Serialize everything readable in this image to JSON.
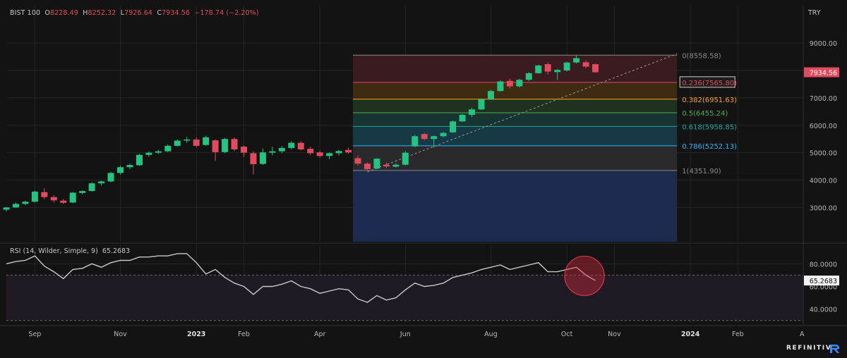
{
  "header": {
    "instrument": "BIST 100",
    "open_label": "O",
    "open": "8228.49",
    "high_label": "H",
    "high": "8252.32",
    "low_label": "L",
    "low": "7926.64",
    "close_label": "C",
    "close": "7934.56",
    "change": "−178.74 (−2.20%)"
  },
  "currency": "TRY",
  "last_price_label": "7934.56",
  "rsi": {
    "label": "RSI (14, Wilder, Simple, 9)",
    "value_label": "65.2683",
    "ticks": [
      "80.0000",
      "60.0000",
      "40.0000"
    ]
  },
  "brand": "REFINITIV",
  "colors": {
    "up": "#26c281",
    "down": "#e24a5e",
    "background": "#131313",
    "grid": "#262626",
    "rsi_line": "#c8c8c8"
  },
  "chart_data": [
    {
      "type": "candlestick",
      "title": "BIST 100",
      "ylabel": "TRY",
      "ylim": [
        1750,
        9800
      ],
      "y_ticks": [
        3000,
        4000,
        5000,
        6000,
        7000,
        8000,
        9000
      ],
      "y_tick_labels": [
        "3000.00",
        "4000.00",
        "5000.00",
        "6000.00",
        "7000.00",
        "8000.00",
        "9000.00"
      ],
      "x_ticks": [
        {
          "label": "Sep",
          "i": 3,
          "bold": false
        },
        {
          "label": "Nov",
          "i": 12,
          "bold": false
        },
        {
          "label": "2023",
          "i": 20,
          "bold": true
        },
        {
          "label": "Feb",
          "i": 25,
          "bold": false
        },
        {
          "label": "Apr",
          "i": 33,
          "bold": false
        },
        {
          "label": "Jun",
          "i": 42,
          "bold": false
        },
        {
          "label": "Aug",
          "i": 51,
          "bold": false
        },
        {
          "label": "Oct",
          "i": 59,
          "bold": false
        },
        {
          "label": "Nov",
          "i": 64,
          "bold": false
        },
        {
          "label": "2024",
          "i": 72,
          "bold": true
        },
        {
          "label": "Feb",
          "i": 77,
          "bold": false
        }
      ],
      "candles": [
        {
          "o": 2920,
          "h": 3020,
          "l": 2850,
          "c": 3000
        },
        {
          "o": 3000,
          "h": 3180,
          "l": 2980,
          "c": 3130
        },
        {
          "o": 3130,
          "h": 3250,
          "l": 3080,
          "c": 3210
        },
        {
          "o": 3210,
          "h": 3620,
          "l": 3190,
          "c": 3580
        },
        {
          "o": 3560,
          "h": 3700,
          "l": 3300,
          "c": 3380
        },
        {
          "o": 3380,
          "h": 3450,
          "l": 3180,
          "c": 3260
        },
        {
          "o": 3250,
          "h": 3310,
          "l": 3130,
          "c": 3170
        },
        {
          "o": 3180,
          "h": 3560,
          "l": 3160,
          "c": 3540
        },
        {
          "o": 3530,
          "h": 3620,
          "l": 3480,
          "c": 3600
        },
        {
          "o": 3600,
          "h": 3930,
          "l": 3580,
          "c": 3880
        },
        {
          "o": 3880,
          "h": 3980,
          "l": 3800,
          "c": 3950
        },
        {
          "o": 3950,
          "h": 4300,
          "l": 3920,
          "c": 4260
        },
        {
          "o": 4260,
          "h": 4520,
          "l": 4200,
          "c": 4470
        },
        {
          "o": 4470,
          "h": 4600,
          "l": 4400,
          "c": 4550
        },
        {
          "o": 4540,
          "h": 4960,
          "l": 4520,
          "c": 4920
        },
        {
          "o": 4920,
          "h": 5050,
          "l": 4850,
          "c": 5000
        },
        {
          "o": 5000,
          "h": 5100,
          "l": 4960,
          "c": 5050
        },
        {
          "o": 5050,
          "h": 5300,
          "l": 5020,
          "c": 5250
        },
        {
          "o": 5250,
          "h": 5480,
          "l": 5220,
          "c": 5440
        },
        {
          "o": 5440,
          "h": 5580,
          "l": 5360,
          "c": 5480
        },
        {
          "o": 5480,
          "h": 5560,
          "l": 5200,
          "c": 5250
        },
        {
          "o": 5280,
          "h": 5620,
          "l": 5250,
          "c": 5560
        },
        {
          "o": 5450,
          "h": 5480,
          "l": 4700,
          "c": 5020
        },
        {
          "o": 5020,
          "h": 5540,
          "l": 4980,
          "c": 5500
        },
        {
          "o": 5500,
          "h": 5560,
          "l": 5050,
          "c": 5120
        },
        {
          "o": 5220,
          "h": 5260,
          "l": 4850,
          "c": 5000
        },
        {
          "o": 4980,
          "h": 5050,
          "l": 4200,
          "c": 4580
        },
        {
          "o": 4590,
          "h": 5150,
          "l": 4550,
          "c": 5010
        },
        {
          "o": 5000,
          "h": 5220,
          "l": 4900,
          "c": 5050
        },
        {
          "o": 5050,
          "h": 5240,
          "l": 4980,
          "c": 5170
        },
        {
          "o": 5170,
          "h": 5420,
          "l": 5120,
          "c": 5360
        },
        {
          "o": 5360,
          "h": 5420,
          "l": 5080,
          "c": 5120
        },
        {
          "o": 5140,
          "h": 5220,
          "l": 4920,
          "c": 4980
        },
        {
          "o": 5010,
          "h": 5060,
          "l": 4820,
          "c": 4880
        },
        {
          "o": 4880,
          "h": 5010,
          "l": 4760,
          "c": 4980
        },
        {
          "o": 4980,
          "h": 5100,
          "l": 4900,
          "c": 5060
        },
        {
          "o": 5100,
          "h": 5180,
          "l": 4960,
          "c": 5010
        },
        {
          "o": 4800,
          "h": 4900,
          "l": 4520,
          "c": 4600
        },
        {
          "o": 4600,
          "h": 4640,
          "l": 4351.9,
          "c": 4400
        },
        {
          "o": 4420,
          "h": 4800,
          "l": 4400,
          "c": 4780
        },
        {
          "o": 4560,
          "h": 4640,
          "l": 4440,
          "c": 4500
        },
        {
          "o": 4490,
          "h": 4620,
          "l": 4460,
          "c": 4560
        },
        {
          "o": 4560,
          "h": 5060,
          "l": 4540,
          "c": 5000
        },
        {
          "o": 5230,
          "h": 5650,
          "l": 5200,
          "c": 5600
        },
        {
          "o": 5680,
          "h": 5720,
          "l": 5450,
          "c": 5500
        },
        {
          "o": 5500,
          "h": 5620,
          "l": 5180,
          "c": 5600
        },
        {
          "o": 5600,
          "h": 5760,
          "l": 5560,
          "c": 5720
        },
        {
          "o": 5740,
          "h": 6180,
          "l": 5720,
          "c": 6140
        },
        {
          "o": 6140,
          "h": 6420,
          "l": 6120,
          "c": 6380
        },
        {
          "o": 6380,
          "h": 6640,
          "l": 6300,
          "c": 6580
        },
        {
          "o": 6580,
          "h": 6980,
          "l": 6560,
          "c": 6950
        },
        {
          "o": 6950,
          "h": 7300,
          "l": 6920,
          "c": 7250
        },
        {
          "o": 7250,
          "h": 7640,
          "l": 7220,
          "c": 7600
        },
        {
          "o": 7620,
          "h": 7700,
          "l": 7350,
          "c": 7420
        },
        {
          "o": 7420,
          "h": 7700,
          "l": 7380,
          "c": 7660
        },
        {
          "o": 7660,
          "h": 7940,
          "l": 7620,
          "c": 7900
        },
        {
          "o": 7900,
          "h": 8210,
          "l": 7880,
          "c": 8180
        },
        {
          "o": 8230,
          "h": 8300,
          "l": 7860,
          "c": 7960
        },
        {
          "o": 7940,
          "h": 8060,
          "l": 7650,
          "c": 8020
        },
        {
          "o": 8000,
          "h": 8320,
          "l": 7960,
          "c": 8290
        },
        {
          "o": 8290,
          "h": 8558.58,
          "l": 8250,
          "c": 8450
        },
        {
          "o": 8300,
          "h": 8380,
          "l": 8080,
          "c": 8140
        },
        {
          "o": 8228.49,
          "h": 8252.32,
          "l": 7926.64,
          "c": 7934.56
        }
      ],
      "fibonacci": {
        "levels": [
          {
            "ratio": "0",
            "price": 8558.58,
            "label": "0(8558.58)",
            "color": "#8a8a8a"
          },
          {
            "ratio": "0.236",
            "price": 7565.8,
            "label": "0.236(7565.80)",
            "color": "#e24a5e"
          },
          {
            "ratio": "0.382",
            "price": 6951.63,
            "label": "0.382(6951.63)",
            "color": "#f5a623"
          },
          {
            "ratio": "0.5",
            "price": 6455.24,
            "label": "0.5(6455.24)",
            "color": "#4caf50"
          },
          {
            "ratio": "0.618",
            "price": 5958.85,
            "label": "0.618(5958.85)",
            "color": "#26a69a"
          },
          {
            "ratio": "0.786",
            "price": 5252.13,
            "label": "0.786(5252.13)",
            "color": "#29b6f6"
          },
          {
            "ratio": "1",
            "price": 4351.9,
            "label": "1(4351.90)",
            "color": "#8a8a8a"
          }
        ],
        "zone_colors": [
          "#3a1b20",
          "#3e2b12",
          "#1f3220",
          "#163532",
          "#173845",
          "#2a2a2c",
          "#1c2b4e"
        ],
        "start_index": 37,
        "end_index": 70
      }
    },
    {
      "type": "line",
      "title": "RSI (14, Wilder, Simple, 9)",
      "ylim": [
        28,
        97
      ],
      "y_ticks": [
        80,
        60,
        40
      ],
      "reference_lines": [
        70,
        30
      ],
      "values": [
        80,
        82,
        83,
        87,
        78,
        73,
        67,
        75,
        76,
        80,
        77,
        81,
        83,
        83,
        86,
        86,
        87,
        87,
        89,
        89,
        81,
        71,
        75,
        68,
        63,
        60,
        53,
        60,
        60,
        62,
        65,
        60,
        58,
        54,
        56,
        58,
        57,
        49,
        46,
        52,
        48,
        50,
        57,
        63,
        60,
        61,
        63,
        68,
        70,
        72,
        75,
        77,
        79,
        75,
        77,
        79,
        81,
        73,
        73,
        75,
        77,
        70,
        65.27
      ],
      "highlight_index": 61
    }
  ]
}
